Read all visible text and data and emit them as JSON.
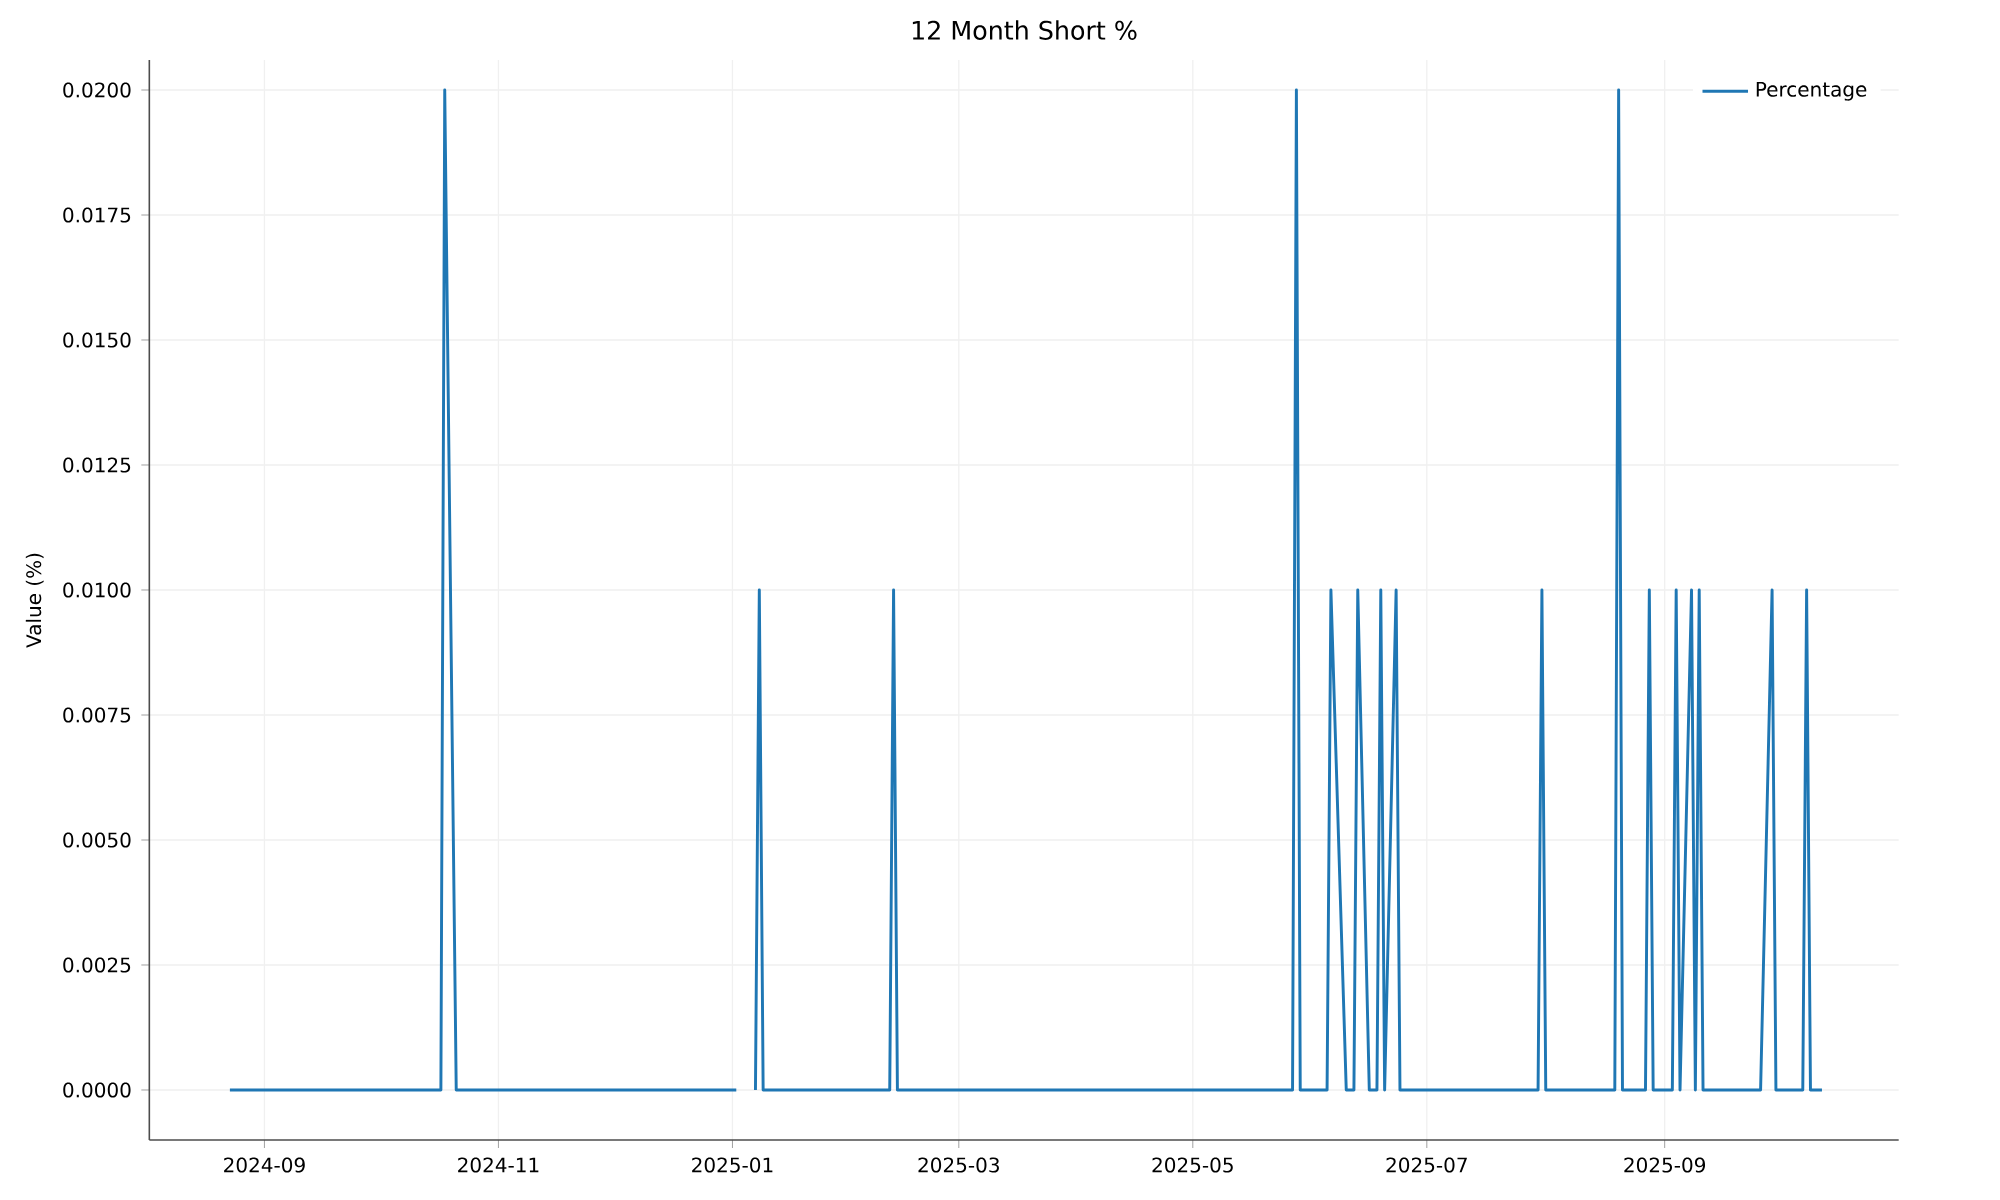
{
  "chart_data": {
    "type": "line",
    "title": "12 Month Short %",
    "ylabel": "Value (%)",
    "x": [
      "2024-08-23",
      "2024-10-17",
      "2024-10-18",
      "2024-10-21",
      "2025-01-02",
      "2025-01-05",
      "2025-01-07",
      "2025-01-08",
      "2025-01-09",
      "2025-02-11",
      "2025-02-12",
      "2025-02-13",
      "2025-05-27",
      "2025-05-28",
      "2025-05-29",
      "2025-06-05",
      "2025-06-06",
      "2025-06-10",
      "2025-06-12",
      "2025-06-13",
      "2025-06-16",
      "2025-06-18",
      "2025-06-19",
      "2025-06-20",
      "2025-06-23",
      "2025-06-24",
      "2025-07-30",
      "2025-07-31",
      "2025-08-01",
      "2025-08-19",
      "2025-08-20",
      "2025-08-21",
      "2025-08-27",
      "2025-08-28",
      "2025-08-29",
      "2025-09-03",
      "2025-09-04",
      "2025-09-05",
      "2025-09-08",
      "2025-09-09",
      "2025-09-10",
      "2025-09-11",
      "2025-09-26",
      "2025-09-29",
      "2025-09-30",
      "2025-10-07",
      "2025-10-08",
      "2025-10-09",
      "2025-10-12"
    ],
    "series": [
      {
        "name": "Percentage",
        "color": "#1f77b4",
        "values": [
          0,
          0,
          0.02,
          0,
          0,
          null,
          0,
          0.01,
          0,
          0,
          0.01,
          0,
          0,
          0.02,
          0,
          0,
          0.01,
          0,
          0,
          0.01,
          0,
          0,
          0.01,
          0,
          0.01,
          0,
          0,
          0.01,
          0,
          0,
          0.02,
          0,
          0,
          0.01,
          0,
          0,
          0.01,
          0,
          0.01,
          0,
          0.01,
          0,
          0,
          0.01,
          0,
          0,
          0.01,
          0,
          0
        ]
      }
    ],
    "xlim": [
      "2024-08-02",
      "2025-11-01"
    ],
    "xticks": [
      {
        "value": "2024-09-01",
        "label": "2024-09"
      },
      {
        "value": "2024-11-01",
        "label": "2024-11"
      },
      {
        "value": "2025-01-01",
        "label": "2025-01"
      },
      {
        "value": "2025-03-01",
        "label": "2025-03"
      },
      {
        "value": "2025-05-01",
        "label": "2025-05"
      },
      {
        "value": "2025-07-01",
        "label": "2025-07"
      },
      {
        "value": "2025-09-01",
        "label": "2025-09"
      }
    ],
    "ylim": [
      -0.001,
      0.0206
    ],
    "yticks": [
      {
        "value": 0,
        "label": "0.0000"
      },
      {
        "value": 0.0025,
        "label": "0.0025"
      },
      {
        "value": 0.005,
        "label": "0.0050"
      },
      {
        "value": 0.0075,
        "label": "0.0075"
      },
      {
        "value": 0.01,
        "label": "0.0100"
      },
      {
        "value": 0.0125,
        "label": "0.0125"
      },
      {
        "value": 0.015,
        "label": "0.0150"
      },
      {
        "value": 0.0175,
        "label": "0.0175"
      },
      {
        "value": 0.02,
        "label": "0.0200"
      }
    ],
    "grid": true,
    "legend": "top right",
    "line_style": "solid"
  }
}
